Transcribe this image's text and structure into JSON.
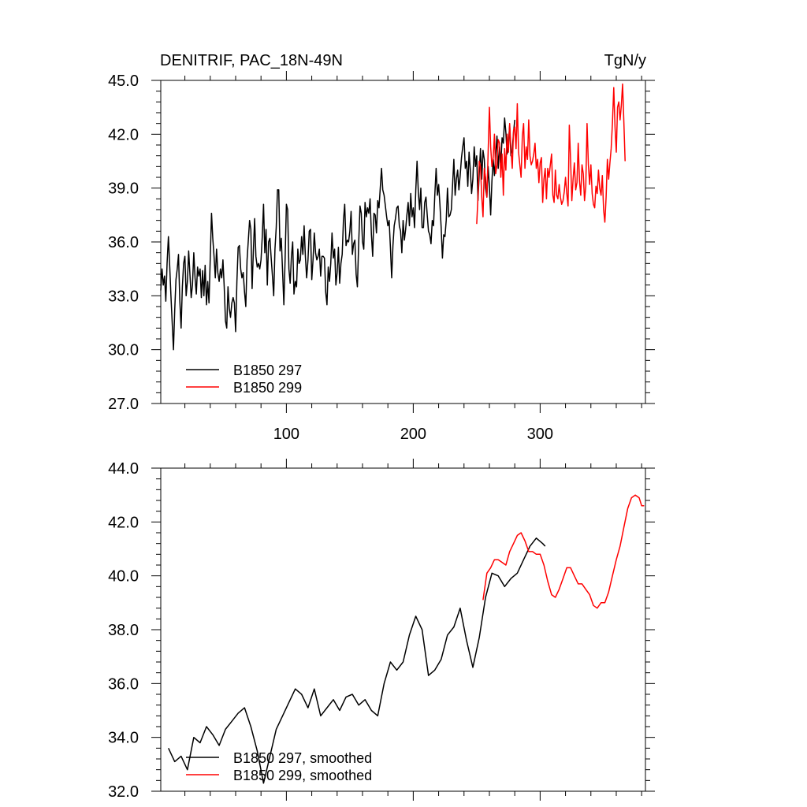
{
  "chart_data": [
    {
      "type": "line",
      "title_left": "DENITRIF, PAC_18N-49N",
      "title_right": "TgN/y",
      "xlabel": "",
      "ylabel": "",
      "xlim": [
        1,
        383
      ],
      "ylim": [
        27.0,
        45.0
      ],
      "xticks": [
        100,
        200,
        300
      ],
      "yticks": [
        27.0,
        30.0,
        33.0,
        36.0,
        39.0,
        42.0,
        45.0
      ],
      "ytick_labels": [
        "27.0",
        "30.0",
        "33.0",
        "36.0",
        "39.0",
        "42.0",
        "45.0"
      ],
      "xtick_labels": [
        "100",
        "200",
        "300"
      ],
      "legend": [
        {
          "name": "B1850 297",
          "color": "#000000"
        },
        {
          "name": "B1850 299",
          "color": "#ff0000"
        }
      ],
      "series": [
        {
          "name": "B1850 297",
          "color": "#000000",
          "x_start": 1,
          "values": [
            33.3,
            34.5,
            33.6,
            34.1,
            32.7,
            34.8,
            36.3,
            34.7,
            33.0,
            31.5,
            30.0,
            32.2,
            33.9,
            34.5,
            35.3,
            32.8,
            31.2,
            33.5,
            34.8,
            35.2,
            33.0,
            33.8,
            35.5,
            34.2,
            32.9,
            33.6,
            35.4,
            34.0,
            33.1,
            34.6,
            34.1,
            34.5,
            32.9,
            34.4,
            33.0,
            34.7,
            32.5,
            33.8,
            32.6,
            35.1,
            37.6,
            36.2,
            35.2,
            34.0,
            35.6,
            34.3,
            33.8,
            34.5,
            34.0,
            35.0,
            33.5,
            31.6,
            31.2,
            33.5,
            32.3,
            31.8,
            32.6,
            32.9,
            32.6,
            31.0,
            33.8,
            35.7,
            35.8,
            34.5,
            34.0,
            34.3,
            33.2,
            32.4,
            35.0,
            36.1,
            37.2,
            36.7,
            33.4,
            35.5,
            37.3,
            35.2,
            34.6,
            34.8,
            34.5,
            35.0,
            36.3,
            38.1,
            35.4,
            36.7,
            33.6,
            36.0,
            36.2,
            35.1,
            34.1,
            33.0,
            35.6,
            36.8,
            38.9,
            38.9,
            35.5,
            36.2,
            34.3,
            32.5,
            35.1,
            38.1,
            37.8,
            34.5,
            33.7,
            35.2,
            36.0,
            33.1,
            33.8,
            33.5,
            35.6,
            34.8,
            35.0,
            36.3,
            35.3,
            36.9,
            35.2,
            34.0,
            35.0,
            36.6,
            36.7,
            33.9,
            35.0,
            36.5,
            35.4,
            35.0,
            35.2,
            35.6,
            34.1,
            35.2,
            35.2,
            35.1,
            33.2,
            32.5,
            34.6,
            33.8,
            34.8,
            36.5,
            35.1,
            35.6,
            33.6,
            34.3,
            35.7,
            33.7,
            34.8,
            35.3,
            37.2,
            38.1,
            35.8,
            36.1,
            36.0,
            36.6,
            37.7,
            35.3,
            35.9,
            36.1,
            34.2,
            33.5,
            36.0,
            38.0,
            37.6,
            36.0,
            35.6,
            38.2,
            37.4,
            37.9,
            37.6,
            38.4,
            36.4,
            35.2,
            37.6,
            37.5,
            36.5,
            38.3,
            37.9,
            39.0,
            40.1,
            38.9,
            38.6,
            38.0,
            37.4,
            36.9,
            37.2,
            35.7,
            34.0,
            35.8,
            36.9,
            37.3,
            37.9,
            38.0,
            36.9,
            36.6,
            35.4,
            37.2,
            36.1,
            36.7,
            37.5,
            38.2,
            36.9,
            38.7,
            37.4,
            37.9,
            36.8,
            38.9,
            40.5,
            38.8,
            37.8,
            39.0,
            36.8,
            36.8,
            38.2,
            38.5,
            37.5,
            36.6,
            36.4,
            35.9,
            37.2,
            36.9,
            38.6,
            40.1,
            38.6,
            39.2,
            38.1,
            36.8,
            35.1,
            36.4,
            36.3,
            37.2,
            39.0,
            37.4,
            37.5,
            37.8,
            39.2,
            40.6,
            38.6,
            39.5,
            40.0,
            38.9,
            39.7,
            40.7,
            41.3,
            41.8,
            40.1,
            40.5,
            39.1,
            41.0,
            40.0,
            38.7,
            39.5,
            41.3,
            40.2,
            40.8,
            38.3,
            39.8,
            41.2,
            39.5,
            41.1,
            40.6,
            39.0,
            38.5,
            40.2,
            39.1,
            37.5,
            39.4,
            40.6,
            39.7,
            40.8,
            41.9,
            40.1,
            41.3,
            40.4,
            41.8,
            41.5,
            42.9,
            42.1,
            40.9,
            41.5,
            42.5,
            40.8,
            41.1,
            42.1,
            42.8
          ]
        },
        {
          "name": "B1850 299",
          "color": "#ff0000",
          "x_start": 250,
          "values": [
            37.0,
            38.5,
            40.5,
            40.2,
            38.5,
            37.4,
            40.1,
            39.6,
            38.5,
            41.0,
            43.5,
            41.3,
            40.2,
            40.7,
            42.0,
            39.8,
            40.3,
            41.7,
            41.5,
            39.6,
            40.9,
            38.6,
            41.2,
            40.0,
            42.0,
            41.0,
            42.6,
            41.2,
            40.1,
            42.2,
            42.4,
            41.2,
            43.7,
            41.0,
            40.3,
            39.6,
            41.9,
            42.6,
            40.1,
            41.3,
            40.6,
            42.8,
            40.8,
            40.3,
            40.5,
            40.9,
            41.5,
            40.1,
            40.6,
            39.3,
            40.4,
            40.7,
            38.2,
            39.5,
            40.1,
            38.4,
            40.1,
            39.6,
            40.3,
            40.9,
            38.6,
            38.2,
            40.0,
            38.6,
            38.4,
            39.2,
            38.5,
            38.1,
            38.3,
            38.8,
            39.6,
            38.7,
            38.0,
            42.5,
            40.6,
            38.3,
            39.5,
            40.4,
            38.9,
            39.3,
            41.5,
            39.4,
            38.6,
            40.3,
            39.8,
            38.3,
            39.1,
            42.6,
            40.3,
            39.2,
            40.3,
            38.7,
            38.1,
            37.9,
            39.1,
            38.7,
            40.0,
            39.0,
            38.6,
            39.7,
            37.8,
            37.1,
            38.5,
            40.6,
            39.5,
            40.4,
            41.2,
            42.6,
            44.6,
            42.4,
            41.0,
            43.5,
            43.8,
            42.8,
            43.6,
            44.8,
            42.7,
            40.5
          ]
        }
      ]
    },
    {
      "type": "line",
      "title_left": "",
      "title_right": "",
      "xlabel": "",
      "ylabel": "",
      "xlim": [
        1,
        383
      ],
      "ylim": [
        32.0,
        44.0
      ],
      "xticks": [
        100,
        200,
        300
      ],
      "yticks": [
        32.0,
        34.0,
        36.0,
        38.0,
        40.0,
        42.0,
        44.0
      ],
      "ytick_labels": [
        "32.0",
        "34.0",
        "36.0",
        "38.0",
        "40.0",
        "42.0",
        "44.0"
      ],
      "legend": [
        {
          "name": "B1850 297, smoothed",
          "color": "#000000"
        },
        {
          "name": "B1850 299, smoothed",
          "color": "#ff0000"
        }
      ],
      "series": [
        {
          "name": "B1850 297, smoothed",
          "color": "#000000",
          "x": [
            7,
            12,
            17,
            22,
            27,
            32,
            37,
            42,
            47,
            52,
            57,
            62,
            67,
            72,
            77,
            82,
            87,
            92,
            97,
            102,
            107,
            112,
            117,
            122,
            127,
            132,
            137,
            142,
            147,
            152,
            157,
            162,
            167,
            172,
            177,
            182,
            187,
            192,
            197,
            202,
            207,
            212,
            217,
            222,
            227,
            232,
            237,
            242,
            247,
            252,
            257,
            262,
            267,
            272,
            277,
            282,
            287,
            292,
            297,
            302,
            304
          ],
          "values": [
            33.6,
            33.1,
            33.3,
            32.8,
            34.0,
            33.8,
            34.4,
            34.1,
            33.7,
            34.3,
            34.6,
            34.9,
            35.1,
            34.4,
            33.5,
            32.3,
            33.3,
            34.3,
            34.8,
            35.3,
            35.8,
            35.6,
            35.1,
            35.8,
            34.8,
            35.1,
            35.4,
            35.0,
            35.5,
            35.6,
            35.2,
            35.4,
            35.0,
            34.8,
            36.0,
            36.8,
            36.5,
            36.8,
            37.8,
            38.5,
            38.0,
            36.3,
            36.5,
            36.9,
            37.8,
            38.1,
            38.8,
            37.6,
            36.6,
            37.7,
            39.2,
            40.1,
            40.0,
            39.6,
            39.9,
            40.1,
            40.6,
            41.1,
            41.4,
            41.2,
            41.1
          ]
        },
        {
          "name": "B1850 299, smoothed",
          "color": "#ff0000",
          "x": [
            255,
            258,
            261,
            264,
            267,
            270,
            273,
            276,
            279,
            282,
            285,
            288,
            291,
            294,
            297,
            300,
            303,
            306,
            309,
            312,
            315,
            318,
            321,
            324,
            327,
            330,
            333,
            336,
            339,
            342,
            345,
            348,
            351,
            354,
            357,
            360,
            363,
            366,
            369,
            372,
            375,
            378,
            380,
            382
          ],
          "values": [
            39.1,
            40.1,
            40.3,
            40.6,
            40.6,
            40.5,
            40.4,
            40.9,
            41.2,
            41.5,
            41.6,
            41.3,
            40.9,
            40.9,
            40.8,
            40.8,
            40.4,
            39.8,
            39.3,
            39.2,
            39.5,
            39.9,
            40.3,
            40.3,
            40.0,
            39.7,
            39.7,
            39.5,
            39.3,
            38.9,
            38.8,
            39.0,
            39.0,
            39.4,
            40.0,
            40.6,
            41.1,
            41.8,
            42.5,
            42.9,
            43.0,
            42.9,
            42.6,
            42.6
          ]
        }
      ]
    }
  ]
}
